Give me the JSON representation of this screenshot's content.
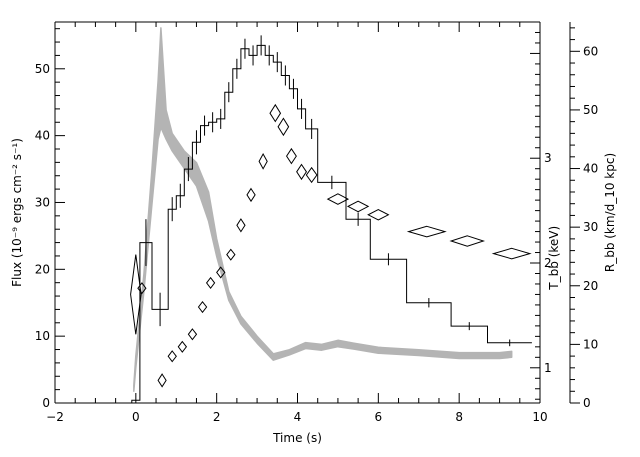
{
  "chart_data": {
    "type": "line",
    "xlabel": "Time (s)",
    "ylabel": "Flux (10⁻⁹ ergs cm⁻² s⁻¹)",
    "y2label": "T_bb (keV)",
    "y3label": "R_bb (km/d_10 kpc)",
    "xlim": [
      -2,
      10
    ],
    "ylim": [
      0,
      57
    ],
    "y2lim": [
      0.664,
      4.3
    ],
    "y3lim": [
      0,
      65
    ],
    "xticks": [
      -2,
      0,
      2,
      4,
      6,
      8,
      10
    ],
    "yticks": [
      0,
      10,
      20,
      30,
      40,
      50
    ],
    "y2ticks": [
      1,
      2,
      3
    ],
    "y3ticks": [
      0,
      10,
      20,
      30,
      40,
      50,
      60
    ],
    "grid": false,
    "legend": "none",
    "series": [
      {
        "type": "step",
        "color": "#000000",
        "bins": [
          {
            "x0": -0.1,
            "x1": 0.1,
            "y": 0.4
          },
          {
            "x0": 0.1,
            "x1": 0.4,
            "y": 24.0
          },
          {
            "x0": 0.4,
            "x1": 0.8,
            "y": 14.0
          },
          {
            "x0": 0.8,
            "x1": 1.0,
            "y": 29.0
          },
          {
            "x0": 1.0,
            "x1": 1.2,
            "y": 31.0
          },
          {
            "x0": 1.2,
            "x1": 1.4,
            "y": 35.0
          },
          {
            "x0": 1.4,
            "x1": 1.6,
            "y": 39.0
          },
          {
            "x0": 1.6,
            "x1": 1.8,
            "y": 41.5
          },
          {
            "x0": 1.8,
            "x1": 2.0,
            "y": 42.0
          },
          {
            "x0": 2.0,
            "x1": 2.2,
            "y": 42.5
          },
          {
            "x0": 2.2,
            "x1": 2.4,
            "y": 46.5
          },
          {
            "x0": 2.4,
            "x1": 2.6,
            "y": 50.0
          },
          {
            "x0": 2.6,
            "x1": 2.8,
            "y": 53.0
          },
          {
            "x0": 2.8,
            "x1": 3.0,
            "y": 52.0
          },
          {
            "x0": 3.0,
            "x1": 3.2,
            "y": 53.5
          },
          {
            "x0": 3.2,
            "x1": 3.4,
            "y": 52.0
          },
          {
            "x0": 3.4,
            "x1": 3.6,
            "y": 51.0
          },
          {
            "x0": 3.6,
            "x1": 3.8,
            "y": 49.0
          },
          {
            "x0": 3.8,
            "x1": 4.0,
            "y": 47.0
          },
          {
            "x0": 4.0,
            "x1": 4.2,
            "y": 44.0
          },
          {
            "x0": 4.2,
            "x1": 4.5,
            "y": 41.0
          },
          {
            "x0": 4.5,
            "x1": 5.2,
            "y": 33.0
          },
          {
            "x0": 5.2,
            "x1": 5.8,
            "y": 27.5
          },
          {
            "x0": 5.8,
            "x1": 6.7,
            "y": 21.5
          },
          {
            "x0": 6.7,
            "x1": 7.8,
            "y": 15.0
          },
          {
            "x0": 7.8,
            "x1": 8.7,
            "y": 11.5
          },
          {
            "x0": 8.7,
            "x1": 9.8,
            "y": 9.0
          }
        ],
        "error_half": [
          0.2,
          3.5,
          2.5,
          1.8,
          1.8,
          1.8,
          1.8,
          1.5,
          1.5,
          1.5,
          1.5,
          1.5,
          1.5,
          1.5,
          1.5,
          1.5,
          1.5,
          1.5,
          1.5,
          1.5,
          1.5,
          1.0,
          1.0,
          0.9,
          0.7,
          0.6,
          0.5
        ]
      },
      {
        "type": "diamond",
        "axis": "y2",
        "color": "#000000",
        "points": [
          {
            "x": 0.0,
            "y": 1.7,
            "xerr": 0.13,
            "yerr": 0.38
          },
          {
            "x": 0.15,
            "y": 1.76,
            "xerr": 0.1,
            "yerr": 0.05
          },
          {
            "x": 0.65,
            "y": 0.88,
            "xerr": 0.1,
            "yerr": 0.06
          },
          {
            "x": 0.9,
            "y": 1.11,
            "xerr": 0.1,
            "yerr": 0.05
          },
          {
            "x": 1.15,
            "y": 1.2,
            "xerr": 0.1,
            "yerr": 0.05
          },
          {
            "x": 1.4,
            "y": 1.32,
            "xerr": 0.1,
            "yerr": 0.05
          },
          {
            "x": 1.65,
            "y": 1.58,
            "xerr": 0.1,
            "yerr": 0.05
          },
          {
            "x": 1.85,
            "y": 1.81,
            "xerr": 0.1,
            "yerr": 0.05
          },
          {
            "x": 2.1,
            "y": 1.91,
            "xerr": 0.1,
            "yerr": 0.05
          },
          {
            "x": 2.35,
            "y": 2.08,
            "xerr": 0.1,
            "yerr": 0.05
          },
          {
            "x": 2.6,
            "y": 2.36,
            "xerr": 0.1,
            "yerr": 0.06
          },
          {
            "x": 2.85,
            "y": 2.65,
            "xerr": 0.1,
            "yerr": 0.06
          },
          {
            "x": 3.15,
            "y": 2.97,
            "xerr": 0.1,
            "yerr": 0.07
          },
          {
            "x": 3.45,
            "y": 3.43,
            "xerr": 0.13,
            "yerr": 0.08
          },
          {
            "x": 3.65,
            "y": 3.3,
            "xerr": 0.13,
            "yerr": 0.08
          },
          {
            "x": 3.85,
            "y": 3.02,
            "xerr": 0.12,
            "yerr": 0.07
          },
          {
            "x": 4.1,
            "y": 2.87,
            "xerr": 0.12,
            "yerr": 0.07
          },
          {
            "x": 4.35,
            "y": 2.84,
            "xerr": 0.13,
            "yerr": 0.07
          },
          {
            "x": 5.0,
            "y": 2.61,
            "xerr": 0.25,
            "yerr": 0.05
          },
          {
            "x": 5.5,
            "y": 2.54,
            "xerr": 0.25,
            "yerr": 0.05
          },
          {
            "x": 6.0,
            "y": 2.46,
            "xerr": 0.25,
            "yerr": 0.05
          },
          {
            "x": 7.2,
            "y": 2.3,
            "xerr": 0.45,
            "yerr": 0.05
          },
          {
            "x": 8.2,
            "y": 2.21,
            "xerr": 0.4,
            "yerr": 0.05
          },
          {
            "x": 9.3,
            "y": 2.09,
            "xerr": 0.45,
            "yerr": 0.05
          }
        ]
      },
      {
        "type": "band",
        "axis": "y3",
        "color": "#b4b4b4",
        "points": [
          {
            "x": -0.05,
            "lo": 2,
            "hi": 3
          },
          {
            "x": 0.0,
            "lo": 6,
            "hi": 8
          },
          {
            "x": 0.2,
            "lo": 19,
            "hi": 22
          },
          {
            "x": 0.4,
            "lo": 34,
            "hi": 40
          },
          {
            "x": 0.55,
            "lo": 45,
            "hi": 55
          },
          {
            "x": 0.62,
            "lo": 47,
            "hi": 64
          },
          {
            "x": 0.75,
            "lo": 45,
            "hi": 50
          },
          {
            "x": 0.9,
            "lo": 43,
            "hi": 46
          },
          {
            "x": 1.2,
            "lo": 40,
            "hi": 43
          },
          {
            "x": 1.5,
            "lo": 37,
            "hi": 41
          },
          {
            "x": 1.8,
            "lo": 31,
            "hi": 36
          },
          {
            "x": 2.0,
            "lo": 25,
            "hi": 28
          },
          {
            "x": 2.3,
            "lo": 17.5,
            "hi": 19
          },
          {
            "x": 2.6,
            "lo": 13.5,
            "hi": 14.8
          },
          {
            "x": 3.0,
            "lo": 10.2,
            "hi": 11.4
          },
          {
            "x": 3.4,
            "lo": 7.3,
            "hi": 8.4
          },
          {
            "x": 3.8,
            "lo": 8.2,
            "hi": 9.1
          },
          {
            "x": 4.2,
            "lo": 9.3,
            "hi": 10.3
          },
          {
            "x": 4.6,
            "lo": 9.0,
            "hi": 10.0
          },
          {
            "x": 5.0,
            "lo": 9.6,
            "hi": 10.7
          },
          {
            "x": 5.4,
            "lo": 9.2,
            "hi": 10.2
          },
          {
            "x": 6.0,
            "lo": 8.5,
            "hi": 9.5
          },
          {
            "x": 7.0,
            "lo": 8.1,
            "hi": 9.1
          },
          {
            "x": 8.0,
            "lo": 7.6,
            "hi": 8.6
          },
          {
            "x": 9.0,
            "lo": 7.6,
            "hi": 8.6
          },
          {
            "x": 9.3,
            "lo": 7.8,
            "hi": 8.8
          }
        ]
      }
    ]
  }
}
